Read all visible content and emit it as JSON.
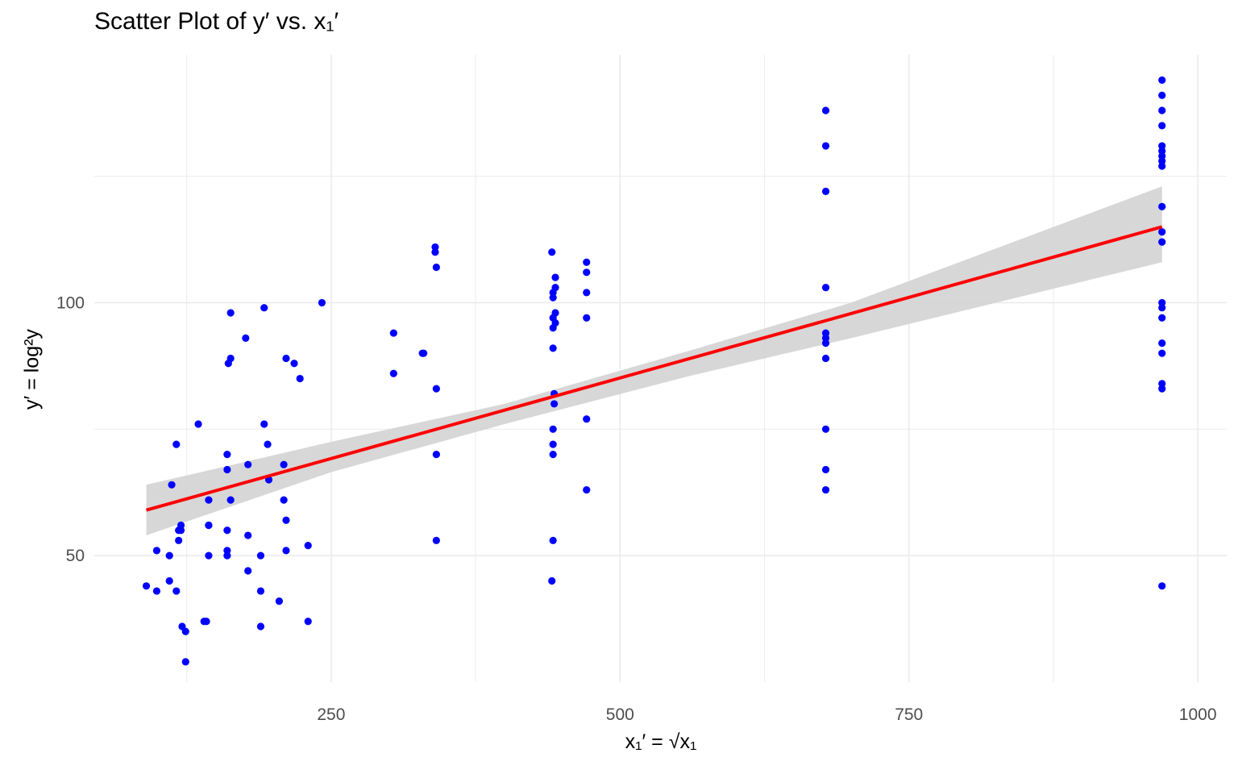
{
  "chart_data": {
    "type": "scatter",
    "title": "Scatter Plot of y′ vs. x₁′",
    "xlabel": "x₁′ = √x₁",
    "ylabel": "y′ = log²y",
    "xlim": [
      45,
      1025
    ],
    "ylim": [
      25,
      149
    ],
    "x_ticks": [
      250,
      500,
      750,
      1000
    ],
    "y_ticks": [
      50,
      100
    ],
    "grid": true,
    "points": [
      [
        90,
        44
      ],
      [
        99,
        43
      ],
      [
        99,
        51
      ],
      [
        110,
        45
      ],
      [
        110,
        50
      ],
      [
        112,
        64
      ],
      [
        116,
        43
      ],
      [
        116,
        72
      ],
      [
        118,
        53
      ],
      [
        118,
        55
      ],
      [
        120,
        55
      ],
      [
        120,
        56
      ],
      [
        121,
        36
      ],
      [
        124,
        35
      ],
      [
        124,
        29
      ],
      [
        135,
        76
      ],
      [
        140,
        37
      ],
      [
        142,
        37
      ],
      [
        144,
        50
      ],
      [
        144,
        56
      ],
      [
        144,
        56
      ],
      [
        144,
        61
      ],
      [
        160,
        51
      ],
      [
        160,
        50
      ],
      [
        160,
        55
      ],
      [
        160,
        67
      ],
      [
        160,
        70
      ],
      [
        161,
        88
      ],
      [
        163,
        89
      ],
      [
        163,
        98
      ],
      [
        163,
        61
      ],
      [
        176,
        93
      ],
      [
        178,
        68
      ],
      [
        178,
        47
      ],
      [
        178,
        54
      ],
      [
        189,
        50
      ],
      [
        189,
        43
      ],
      [
        189,
        36
      ],
      [
        192,
        99
      ],
      [
        192,
        76
      ],
      [
        195,
        72
      ],
      [
        196,
        65
      ],
      [
        205,
        41
      ],
      [
        209,
        68
      ],
      [
        209,
        61
      ],
      [
        211,
        57
      ],
      [
        211,
        51
      ],
      [
        211,
        89
      ],
      [
        218,
        88
      ],
      [
        223,
        85
      ],
      [
        230,
        52
      ],
      [
        230,
        37
      ],
      [
        242,
        100
      ],
      [
        304,
        94
      ],
      [
        304,
        86
      ],
      [
        329,
        90
      ],
      [
        330,
        90
      ],
      [
        340,
        111
      ],
      [
        340,
        110
      ],
      [
        341,
        107
      ],
      [
        341,
        83
      ],
      [
        341,
        70
      ],
      [
        341,
        53
      ],
      [
        441,
        110
      ],
      [
        441,
        45
      ],
      [
        442,
        53
      ],
      [
        442,
        91
      ],
      [
        442,
        95
      ],
      [
        442,
        97
      ],
      [
        442,
        101
      ],
      [
        442,
        102
      ],
      [
        442,
        70
      ],
      [
        442,
        72
      ],
      [
        442,
        75
      ],
      [
        443,
        82
      ],
      [
        443,
        80
      ],
      [
        444,
        103
      ],
      [
        444,
        105
      ],
      [
        444,
        98
      ],
      [
        444,
        96
      ],
      [
        471,
        106
      ],
      [
        471,
        108
      ],
      [
        471,
        102
      ],
      [
        471,
        97
      ],
      [
        471,
        77
      ],
      [
        471,
        63
      ],
      [
        678,
        138
      ],
      [
        678,
        131
      ],
      [
        678,
        122
      ],
      [
        678,
        103
      ],
      [
        678,
        94
      ],
      [
        678,
        93
      ],
      [
        678,
        92
      ],
      [
        678,
        89
      ],
      [
        678,
        75
      ],
      [
        678,
        67
      ],
      [
        678,
        63
      ],
      [
        969,
        144
      ],
      [
        969,
        141
      ],
      [
        969,
        138
      ],
      [
        969,
        135
      ],
      [
        969,
        131
      ],
      [
        969,
        130
      ],
      [
        969,
        129
      ],
      [
        969,
        128
      ],
      [
        969,
        127
      ],
      [
        969,
        119
      ],
      [
        969,
        114
      ],
      [
        969,
        112
      ],
      [
        969,
        100
      ],
      [
        969,
        99
      ],
      [
        969,
        97
      ],
      [
        969,
        92
      ],
      [
        969,
        90
      ],
      [
        969,
        84
      ],
      [
        969,
        83
      ],
      [
        969,
        44
      ]
    ],
    "fit_line": {
      "x": [
        90,
        969
      ],
      "y": [
        59,
        115
      ],
      "color": "#ff0000"
    },
    "confidence_band": {
      "x": [
        90,
        250,
        400,
        560,
        700,
        969
      ],
      "lower": [
        54,
        66.5,
        76,
        85.5,
        93,
        108
      ],
      "upper": [
        64,
        72.5,
        80,
        90.5,
        100,
        123
      ],
      "color": "#d3d3d3"
    },
    "colors": {
      "points": "#0000ff",
      "grid": "#ebebeb",
      "axis_text": "#4d4d4d"
    }
  }
}
